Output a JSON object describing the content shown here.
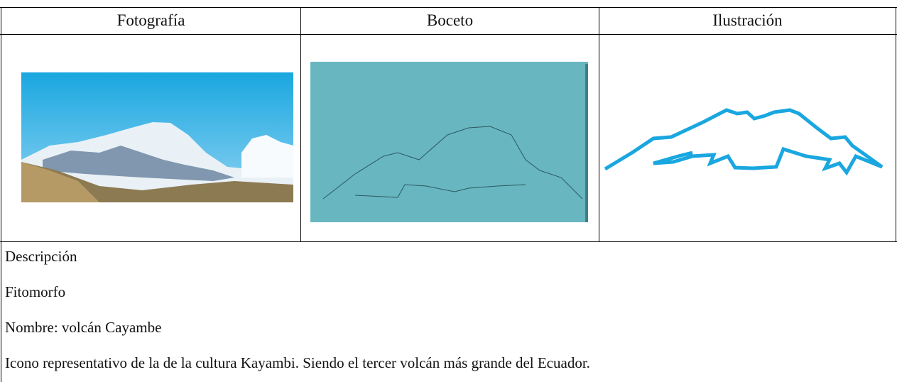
{
  "table": {
    "header": [
      "Fotografía",
      "Boceto",
      "Ilustración"
    ]
  },
  "description": [
    "Descripción",
    "Fitomorfo",
    "Nombre: volcán Cayambe",
    "Icono representativo de la de la cultura Kayambi. Siendo el tercer volcán más grande del Ecuador."
  ]
}
